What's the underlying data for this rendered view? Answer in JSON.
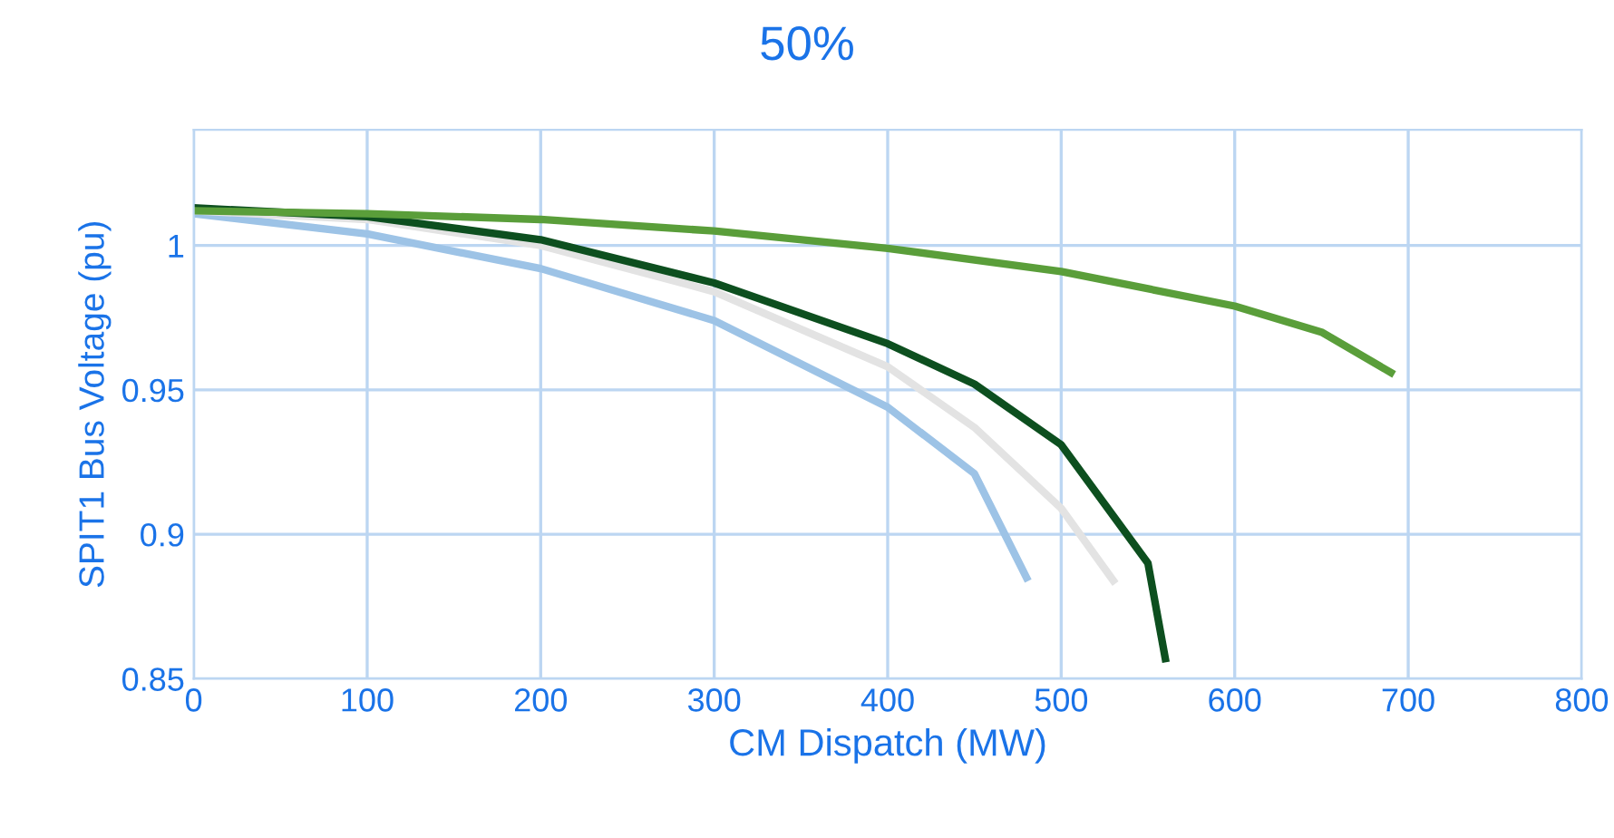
{
  "chart_data": {
    "type": "line",
    "title": "50%",
    "xlabel": "CM Dispatch (MW)",
    "ylabel": "SPIT1 Bus Voltage (pu)",
    "xlim": [
      0,
      800
    ],
    "xticks": [
      0,
      100,
      200,
      300,
      400,
      500,
      600,
      700,
      800
    ],
    "ylim": [
      0.85,
      1.04
    ],
    "yticks": [
      0.85,
      0.9,
      0.95,
      1
    ],
    "grid": true,
    "marker": "none",
    "line_style": "solid",
    "series": [
      {
        "color": "#9dc3e6",
        "x": [
          0,
          100,
          200,
          300,
          400,
          450,
          480
        ],
        "values": [
          1.011,
          1.004,
          0.992,
          0.974,
          0.944,
          0.921,
          0.885
        ]
      },
      {
        "color": "#e3e3e3",
        "x": [
          0,
          100,
          200,
          300,
          400,
          450,
          500,
          530
        ],
        "values": [
          1.012,
          1.009,
          1.0,
          0.984,
          0.958,
          0.937,
          0.909,
          0.884
        ]
      },
      {
        "color": "#0d4f1f",
        "x": [
          0,
          100,
          200,
          300,
          400,
          450,
          500,
          550,
          560
        ],
        "values": [
          1.013,
          1.01,
          1.002,
          0.987,
          0.966,
          0.952,
          0.931,
          0.89,
          0.857
        ]
      },
      {
        "color": "#5a9e3a",
        "x": [
          0,
          100,
          200,
          300,
          400,
          500,
          600,
          650,
          690
        ],
        "values": [
          1.012,
          1.011,
          1.009,
          1.005,
          0.999,
          0.991,
          0.979,
          0.97,
          0.956
        ]
      }
    ]
  }
}
